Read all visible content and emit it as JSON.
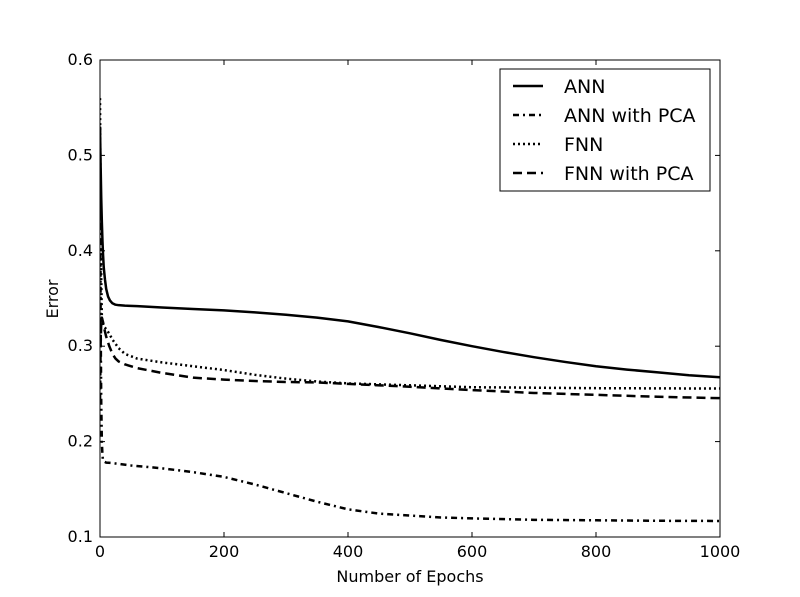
{
  "chart_data": {
    "type": "line",
    "title": "",
    "xlabel": "Number of Epochs",
    "ylabel": "Error",
    "xlim": [
      0,
      1000
    ],
    "ylim": [
      0.1,
      0.6
    ],
    "xticks": [
      0,
      200,
      400,
      600,
      800,
      1000
    ],
    "yticks": [
      0.1,
      0.2,
      0.3,
      0.4,
      0.5,
      0.6
    ],
    "xtick_labels": [
      "0",
      "200",
      "400",
      "600",
      "800",
      "1000"
    ],
    "ytick_labels": [
      "0.1",
      "0.2",
      "0.3",
      "0.4",
      "0.5",
      "0.6"
    ],
    "grid": false,
    "legend_position": "top-right",
    "series": [
      {
        "name": "ANN",
        "style": "solid",
        "color": "#000000",
        "x": [
          0,
          1,
          2,
          3,
          4,
          5,
          6,
          8,
          10,
          13,
          16,
          20,
          25,
          30,
          40,
          60,
          100,
          150,
          200,
          250,
          300,
          350,
          400,
          450,
          500,
          550,
          600,
          650,
          700,
          750,
          800,
          850,
          900,
          950,
          1000
        ],
        "y": [
          0.53,
          0.49,
          0.455,
          0.43,
          0.41,
          0.395,
          0.383,
          0.37,
          0.36,
          0.352,
          0.348,
          0.345,
          0.3435,
          0.343,
          0.3425,
          0.342,
          0.3405,
          0.339,
          0.3375,
          0.3355,
          0.333,
          0.33,
          0.326,
          0.32,
          0.3135,
          0.3065,
          0.3,
          0.294,
          0.2885,
          0.2835,
          0.279,
          0.2755,
          0.2725,
          0.2695,
          0.2675
        ]
      },
      {
        "name": "ANN with PCA",
        "style": "dashdot",
        "color": "#000000",
        "x": [
          0,
          1,
          2,
          3,
          4,
          5,
          7,
          10,
          20,
          50,
          100,
          150,
          200,
          250,
          300,
          350,
          400,
          450,
          500,
          550,
          600,
          700,
          800,
          900,
          1000
        ],
        "y": [
          0.53,
          0.33,
          0.24,
          0.2,
          0.185,
          0.18,
          0.179,
          0.178,
          0.1775,
          0.175,
          0.172,
          0.168,
          0.163,
          0.155,
          0.146,
          0.137,
          0.129,
          0.1245,
          0.1225,
          0.1205,
          0.1195,
          0.118,
          0.1175,
          0.117,
          0.1168
        ]
      },
      {
        "name": "FNN",
        "style": "dotted",
        "color": "#000000",
        "x": [
          0,
          1,
          2,
          3,
          5,
          7,
          10,
          15,
          20,
          30,
          40,
          60,
          100,
          150,
          200,
          250,
          300,
          350,
          400,
          500,
          600,
          700,
          800,
          900,
          1000
        ],
        "y": [
          0.56,
          0.45,
          0.37,
          0.33,
          0.322,
          0.32,
          0.318,
          0.313,
          0.307,
          0.298,
          0.292,
          0.287,
          0.283,
          0.279,
          0.275,
          0.27,
          0.266,
          0.263,
          0.261,
          0.259,
          0.257,
          0.2565,
          0.256,
          0.2558,
          0.2556
        ]
      },
      {
        "name": "FNN with PCA",
        "style": "dashed",
        "color": "#000000",
        "x": [
          0,
          1,
          2,
          3,
          5,
          7,
          10,
          15,
          20,
          25,
          30,
          40,
          60,
          100,
          150,
          200,
          250,
          300,
          350,
          400,
          500,
          600,
          700,
          800,
          900,
          1000
        ],
        "y": [
          0.24,
          0.3,
          0.325,
          0.33,
          0.325,
          0.318,
          0.31,
          0.3,
          0.292,
          0.287,
          0.284,
          0.281,
          0.277,
          0.272,
          0.267,
          0.265,
          0.2635,
          0.2625,
          0.262,
          0.2605,
          0.2575,
          0.254,
          0.251,
          0.249,
          0.247,
          0.2455
        ]
      }
    ]
  }
}
